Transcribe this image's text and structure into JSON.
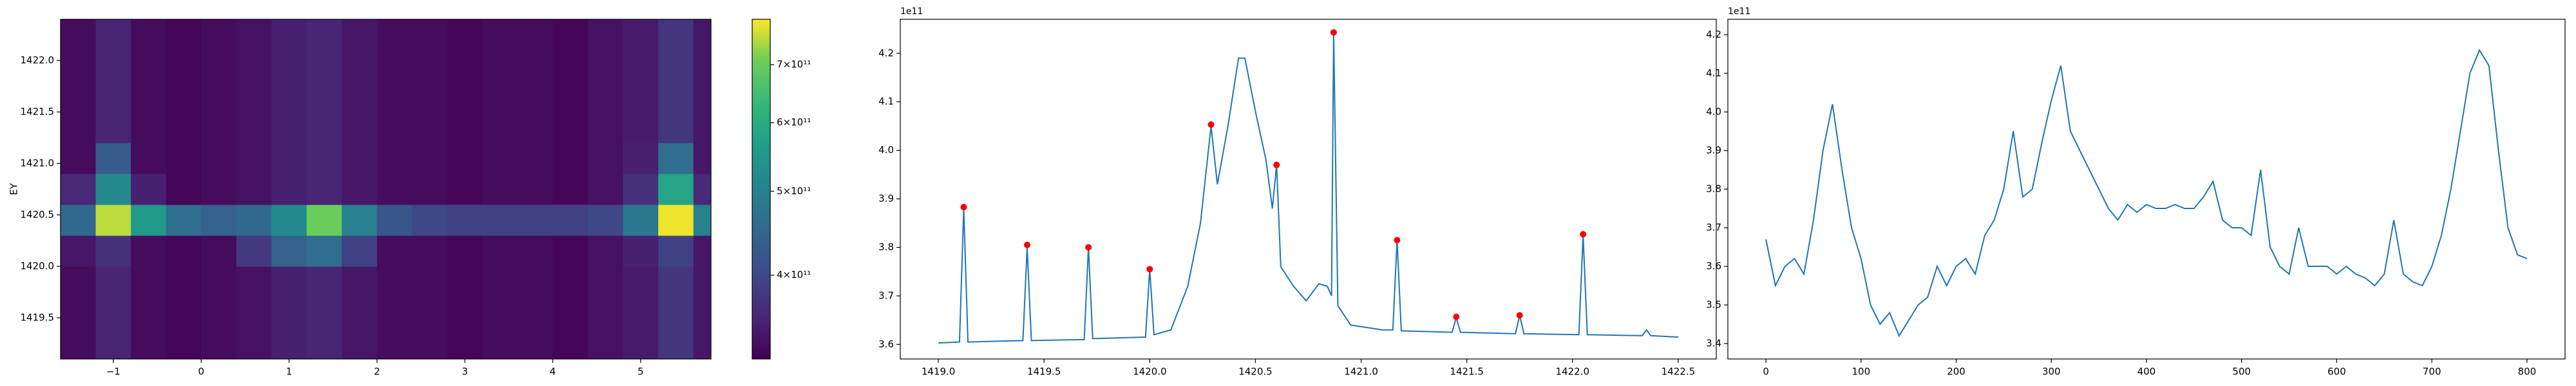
{
  "chart_data": [
    {
      "type": "heatmap",
      "ylabel": "EY",
      "x_edges": [
        -1.6,
        -1.2,
        -0.8,
        -0.4,
        0,
        0.4,
        0.8,
        1.2,
        1.6,
        2.0,
        2.4,
        2.8,
        3.2,
        3.6,
        4.0,
        4.4,
        4.8,
        5.2,
        5.6,
        5.8
      ],
      "y_edges": [
        1419.1,
        1419.4,
        1419.7,
        1420.0,
        1420.3,
        1420.6,
        1420.9,
        1421.2,
        1421.5,
        1421.8,
        1422.1,
        1422.4
      ],
      "values": [
        [
          330000000000.0,
          355000000000.0,
          330000000000.0,
          325000000000.0,
          330000000000.0,
          335000000000.0,
          350000000000.0,
          355000000000.0,
          340000000000.0,
          330000000000.0,
          330000000000.0,
          325000000000.0,
          330000000000.0,
          330000000000.0,
          325000000000.0,
          335000000000.0,
          345000000000.0,
          375000000000.0,
          340000000000.0
        ],
        [
          330000000000.0,
          355000000000.0,
          330000000000.0,
          325000000000.0,
          330000000000.0,
          335000000000.0,
          350000000000.0,
          355000000000.0,
          340000000000.0,
          330000000000.0,
          330000000000.0,
          325000000000.0,
          330000000000.0,
          330000000000.0,
          325000000000.0,
          335000000000.0,
          345000000000.0,
          375000000000.0,
          340000000000.0
        ],
        [
          330000000000.0,
          355000000000.0,
          330000000000.0,
          325000000000.0,
          330000000000.0,
          335000000000.0,
          350000000000.0,
          355000000000.0,
          340000000000.0,
          330000000000.0,
          330000000000.0,
          325000000000.0,
          330000000000.0,
          330000000000.0,
          325000000000.0,
          335000000000.0,
          345000000000.0,
          375000000000.0,
          340000000000.0
        ],
        [
          340000000000.0,
          370000000000.0,
          330000000000.0,
          325000000000.0,
          330000000000.0,
          380000000000.0,
          440000000000.0,
          460000000000.0,
          390000000000.0,
          330000000000.0,
          330000000000.0,
          325000000000.0,
          330000000000.0,
          330000000000.0,
          325000000000.0,
          335000000000.0,
          350000000000.0,
          390000000000.0,
          340000000000.0
        ],
        [
          450000000000.0,
          750000000000.0,
          550000000000.0,
          460000000000.0,
          440000000000.0,
          450000000000.0,
          520000000000.0,
          700000000000.0,
          500000000000.0,
          420000000000.0,
          400000000000.0,
          390000000000.0,
          390000000000.0,
          390000000000.0,
          390000000000.0,
          400000000000.0,
          480000000000.0,
          780000000000.0,
          500000000000.0
        ],
        [
          360000000000.0,
          520000000000.0,
          350000000000.0,
          325000000000.0,
          330000000000.0,
          335000000000.0,
          350000000000.0,
          355000000000.0,
          340000000000.0,
          330000000000.0,
          330000000000.0,
          325000000000.0,
          330000000000.0,
          330000000000.0,
          325000000000.0,
          335000000000.0,
          370000000000.0,
          580000000000.0,
          360000000000.0
        ],
        [
          330000000000.0,
          430000000000.0,
          330000000000.0,
          325000000000.0,
          330000000000.0,
          335000000000.0,
          350000000000.0,
          355000000000.0,
          340000000000.0,
          330000000000.0,
          330000000000.0,
          325000000000.0,
          330000000000.0,
          330000000000.0,
          325000000000.0,
          335000000000.0,
          350000000000.0,
          460000000000.0,
          340000000000.0
        ],
        [
          330000000000.0,
          355000000000.0,
          330000000000.0,
          325000000000.0,
          330000000000.0,
          335000000000.0,
          350000000000.0,
          355000000000.0,
          340000000000.0,
          330000000000.0,
          330000000000.0,
          325000000000.0,
          330000000000.0,
          330000000000.0,
          325000000000.0,
          335000000000.0,
          345000000000.0,
          375000000000.0,
          340000000000.0
        ],
        [
          330000000000.0,
          355000000000.0,
          330000000000.0,
          325000000000.0,
          330000000000.0,
          335000000000.0,
          350000000000.0,
          355000000000.0,
          340000000000.0,
          330000000000.0,
          330000000000.0,
          325000000000.0,
          330000000000.0,
          330000000000.0,
          325000000000.0,
          335000000000.0,
          345000000000.0,
          375000000000.0,
          340000000000.0
        ],
        [
          330000000000.0,
          355000000000.0,
          330000000000.0,
          325000000000.0,
          330000000000.0,
          335000000000.0,
          350000000000.0,
          355000000000.0,
          340000000000.0,
          330000000000.0,
          330000000000.0,
          325000000000.0,
          330000000000.0,
          330000000000.0,
          325000000000.0,
          335000000000.0,
          345000000000.0,
          375000000000.0,
          340000000000.0
        ],
        [
          330000000000.0,
          355000000000.0,
          330000000000.0,
          325000000000.0,
          330000000000.0,
          335000000000.0,
          350000000000.0,
          355000000000.0,
          340000000000.0,
          330000000000.0,
          330000000000.0,
          325000000000.0,
          330000000000.0,
          330000000000.0,
          325000000000.0,
          335000000000.0,
          345000000000.0,
          375000000000.0,
          340000000000.0
        ]
      ],
      "xlim": [
        -1.6,
        5.8
      ],
      "ylim": [
        1419.1,
        1422.4
      ],
      "xticks": [
        {
          "value": -1,
          "label": "−1"
        },
        0,
        1,
        2,
        3,
        4,
        5
      ],
      "yticks": [
        1419.5,
        {
          "value": 1420,
          "label": "1420.0"
        },
        1420.5,
        {
          "value": 1421,
          "label": "1421.0"
        },
        1421.5,
        {
          "value": 1422,
          "label": "1422.0"
        }
      ],
      "colormap": "viridis",
      "color_scale": "log",
      "clim": [
        320000000000.0,
        790000000000.0
      ],
      "cticks": [
        {
          "value": 400000000000.0,
          "label": "4×10¹¹"
        },
        {
          "value": 500000000000.0,
          "label": "5×10¹¹"
        },
        {
          "value": 600000000000.0,
          "label": "6×10¹¹"
        },
        {
          "value": 700000000000.0,
          "label": "7×10¹¹"
        }
      ]
    },
    {
      "type": "line",
      "y_offset_label": "1e11",
      "color": "#1f77b4",
      "x": [
        1419.0,
        1419.1,
        1419.12,
        1419.14,
        1419.4,
        1419.42,
        1419.44,
        1419.69,
        1419.71,
        1419.73,
        1419.98,
        1420.0,
        1420.02,
        1420.1,
        1420.18,
        1420.24,
        1420.29,
        1420.32,
        1420.37,
        1420.42,
        1420.45,
        1420.5,
        1420.55,
        1420.58,
        1420.6,
        1420.62,
        1420.68,
        1420.74,
        1420.8,
        1420.84,
        1420.86,
        1420.87,
        1420.89,
        1420.95,
        1421.1,
        1421.15,
        1421.17,
        1421.19,
        1421.43,
        1421.45,
        1421.47,
        1421.73,
        1421.75,
        1421.77,
        1422.03,
        1422.05,
        1422.07,
        1422.33,
        1422.35,
        1422.37,
        1422.5
      ],
      "values": [
        3.603,
        3.605,
        3.88,
        3.605,
        3.608,
        3.8,
        3.608,
        3.61,
        3.8,
        3.612,
        3.615,
        3.755,
        3.62,
        3.63,
        3.72,
        3.85,
        4.05,
        3.93,
        4.05,
        4.19,
        4.19,
        4.08,
        3.98,
        3.88,
        3.97,
        3.76,
        3.72,
        3.69,
        3.725,
        3.72,
        3.7,
        4.24,
        3.68,
        3.64,
        3.63,
        3.63,
        3.815,
        3.628,
        3.625,
        3.655,
        3.625,
        3.622,
        3.66,
        3.622,
        3.62,
        3.825,
        3.62,
        3.618,
        3.63,
        3.618,
        3.615
      ],
      "peaks": {
        "color": "#ff0000",
        "x": [
          1419.12,
          1419.42,
          1419.71,
          1420.0,
          1420.29,
          1420.6,
          1420.87,
          1421.17,
          1421.45,
          1421.75,
          1422.05
        ],
        "values": [
          3.883,
          3.805,
          3.8,
          3.755,
          4.053,
          3.97,
          4.243,
          3.815,
          3.657,
          3.66,
          3.827
        ]
      },
      "xlim": [
        1418.82,
        1422.68
      ],
      "ylim": [
        3.57,
        4.27
      ],
      "xticks": [
        {
          "value": 1419,
          "label": "1419.0"
        },
        1419.5,
        {
          "value": 1420,
          "label": "1420.0"
        },
        1420.5,
        {
          "value": 1421,
          "label": "1421.0"
        },
        1421.5,
        {
          "value": 1422,
          "label": "1422.0"
        },
        1422.5
      ],
      "yticks": [
        3.6,
        3.7,
        3.8,
        3.9,
        {
          "value": 4,
          "label": "4.0"
        },
        4.1,
        4.2
      ]
    },
    {
      "type": "line",
      "y_offset_label": "1e11",
      "color": "#1f77b4",
      "x": [
        0,
        10,
        20,
        30,
        40,
        50,
        60,
        70,
        80,
        90,
        100,
        110,
        120,
        130,
        140,
        150,
        160,
        170,
        180,
        190,
        200,
        210,
        220,
        230,
        240,
        250,
        260,
        270,
        280,
        290,
        300,
        310,
        320,
        330,
        340,
        350,
        360,
        370,
        380,
        390,
        400,
        410,
        420,
        430,
        440,
        450,
        460,
        470,
        480,
        490,
        500,
        510,
        520,
        530,
        540,
        550,
        560,
        570,
        580,
        590,
        600,
        610,
        620,
        630,
        640,
        650,
        660,
        670,
        680,
        690,
        700,
        710,
        720,
        730,
        740,
        750,
        760,
        770,
        780,
        790,
        800
      ],
      "values": [
        3.67,
        3.55,
        3.6,
        3.62,
        3.58,
        3.72,
        3.9,
        4.02,
        3.85,
        3.7,
        3.62,
        3.5,
        3.45,
        3.48,
        3.42,
        3.46,
        3.5,
        3.52,
        3.6,
        3.55,
        3.6,
        3.62,
        3.58,
        3.68,
        3.72,
        3.8,
        3.95,
        3.78,
        3.8,
        3.92,
        4.03,
        4.12,
        3.95,
        3.9,
        3.85,
        3.8,
        3.75,
        3.72,
        3.76,
        3.74,
        3.76,
        3.75,
        3.75,
        3.76,
        3.75,
        3.75,
        3.78,
        3.82,
        3.72,
        3.7,
        3.7,
        3.68,
        3.85,
        3.65,
        3.6,
        3.58,
        3.7,
        3.6,
        3.6,
        3.6,
        3.58,
        3.6,
        3.58,
        3.57,
        3.55,
        3.58,
        3.72,
        3.58,
        3.56,
        3.55,
        3.6,
        3.68,
        3.8,
        3.95,
        4.1,
        4.16,
        4.12,
        3.9,
        3.7,
        3.63,
        3.62
      ],
      "xlim": [
        -40,
        840
      ],
      "ylim": [
        3.36,
        4.24
      ],
      "xticks": [
        0,
        100,
        200,
        300,
        400,
        500,
        600,
        700,
        800
      ],
      "yticks": [
        3.4,
        3.5,
        3.6,
        3.7,
        3.8,
        3.9,
        {
          "value": 4,
          "label": "4.0"
        },
        4.1,
        4.2
      ]
    }
  ]
}
